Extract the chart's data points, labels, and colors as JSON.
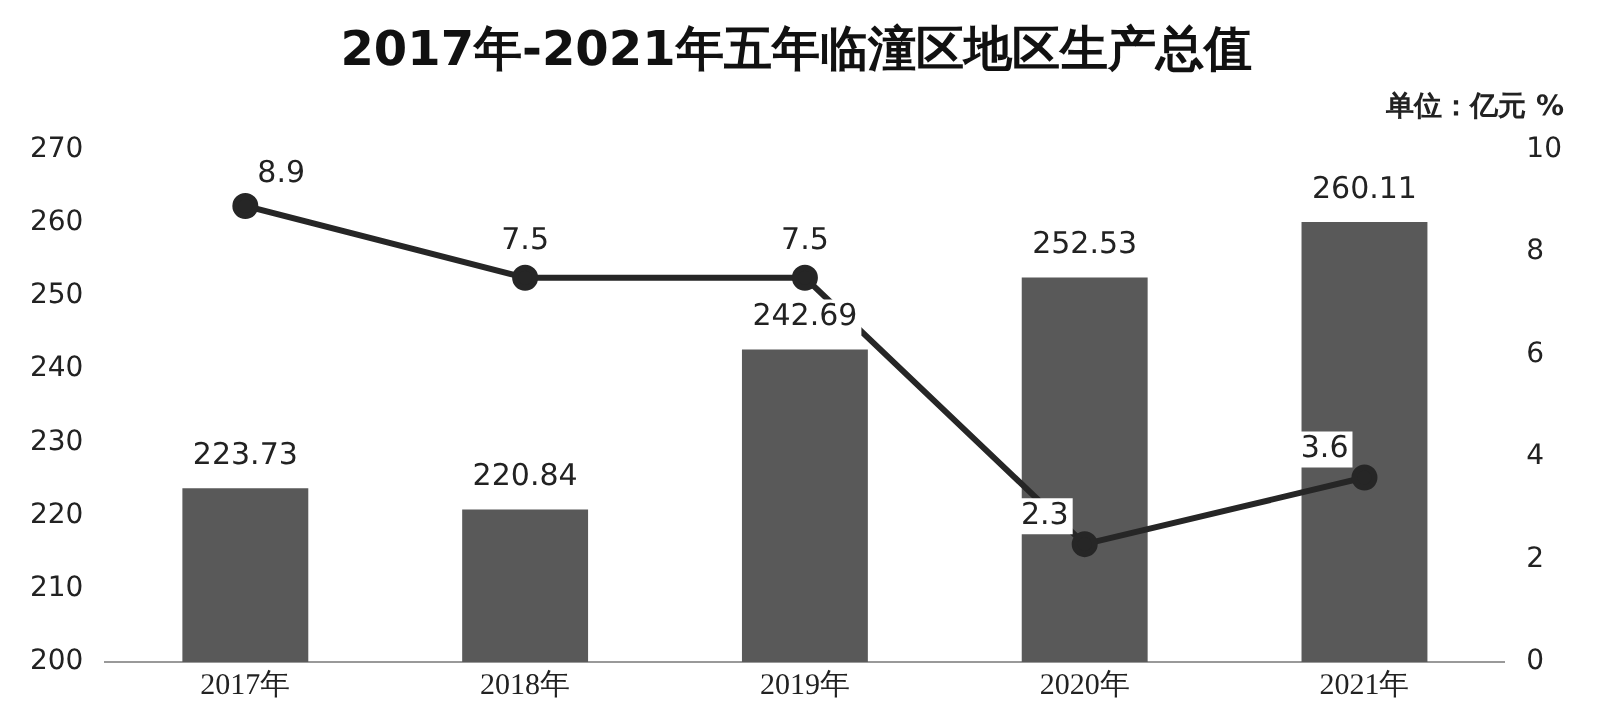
{
  "chart_data": {
    "type": "bar",
    "title": "2017年-2021年五年临潼区地区生产总值",
    "categories": [
      "2017年",
      "2018年",
      "2019年",
      "2020年",
      "2021年"
    ],
    "series": [
      {
        "color": "#595959",
        "values": [
          223.73,
          220.84,
          242.69,
          252.53,
          260.11
        ]
      },
      {
        "type": "line",
        "axis": "y2",
        "color": "#262626",
        "marker": "circle",
        "values": [
          8.9,
          7.5,
          7.5,
          2.3,
          3.6
        ]
      }
    ],
    "ylim": [
      200,
      270
    ],
    "yticks": [
      200,
      210,
      220,
      230,
      240,
      250,
      260,
      270
    ],
    "y2lim": [
      0,
      10
    ],
    "y2ticks": [
      0,
      2,
      4,
      6,
      8,
      10
    ],
    "data_labels": true,
    "grid": false,
    "legend": false,
    "annotations": [
      "单位：亿元 %"
    ]
  }
}
